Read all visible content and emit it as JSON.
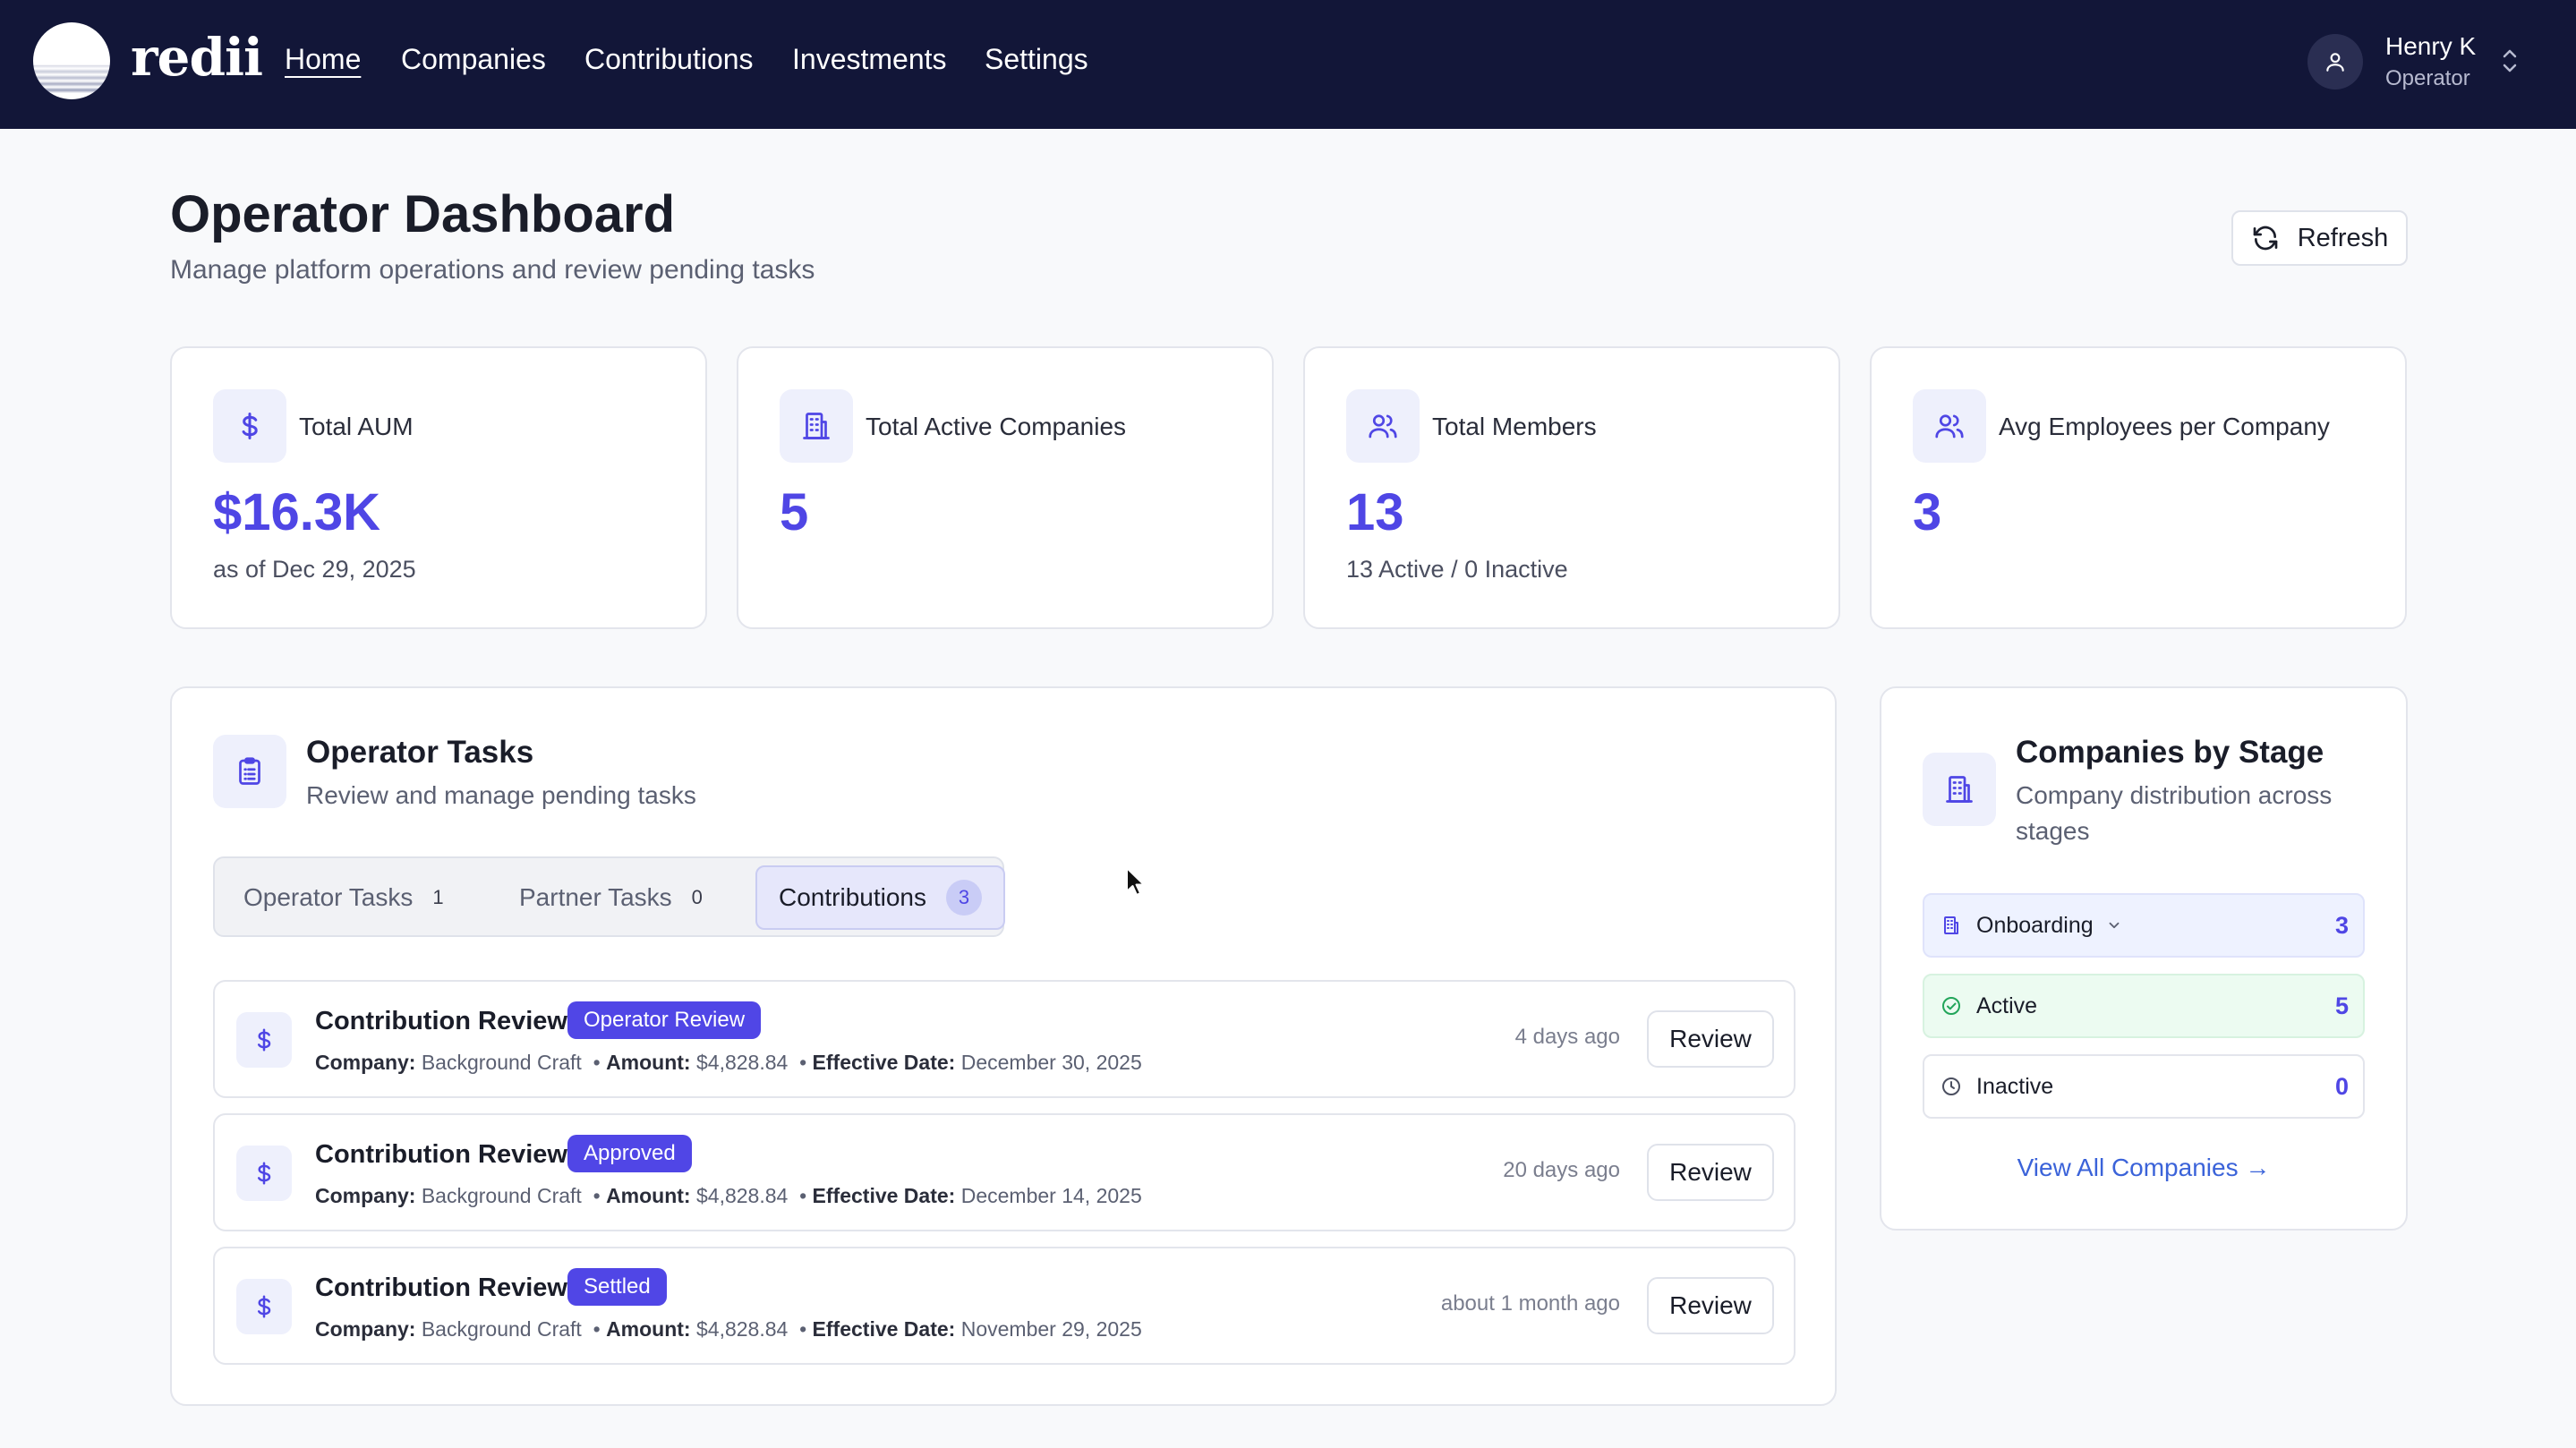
{
  "brand": {
    "name": "redii"
  },
  "nav": {
    "items": [
      {
        "label": "Home",
        "active": true
      },
      {
        "label": "Companies"
      },
      {
        "label": "Contributions"
      },
      {
        "label": "Investments"
      },
      {
        "label": "Settings"
      }
    ]
  },
  "user": {
    "name": "Henry K",
    "role": "Operator"
  },
  "header": {
    "title": "Operator Dashboard",
    "subtitle": "Manage platform operations and review pending tasks",
    "refresh_label": "Refresh"
  },
  "stats": [
    {
      "icon": "dollar-icon",
      "label": "Total AUM",
      "value": "$16.3K",
      "sub": "as of Dec 29, 2025"
    },
    {
      "icon": "building-icon",
      "label": "Total Active Companies",
      "value": "5",
      "sub": ""
    },
    {
      "icon": "users-icon",
      "label": "Total Members",
      "value": "13",
      "sub": "13 Active / 0 Inactive"
    },
    {
      "icon": "users-icon",
      "label": "Avg Employees per Company",
      "value": "3",
      "sub": ""
    }
  ],
  "tasks": {
    "title": "Operator Tasks",
    "subtitle": "Review and manage pending tasks",
    "tabs": [
      {
        "label": "Operator Tasks",
        "count": "1"
      },
      {
        "label": "Partner Tasks",
        "count": "0"
      },
      {
        "label": "Contributions",
        "count": "3",
        "active": true
      }
    ],
    "meta_labels": {
      "company": "Company:",
      "amount": "Amount:",
      "effective": "Effective Date:"
    },
    "review_label": "Review",
    "rows": [
      {
        "title": "Contribution Review",
        "badge": "Operator Review",
        "company": "Background Craft",
        "amount": "$4,828.84",
        "effective_date": "December 30, 2025",
        "time": "4 days ago"
      },
      {
        "title": "Contribution Review",
        "badge": "Approved",
        "company": "Background Craft",
        "amount": "$4,828.84",
        "effective_date": "December 14, 2025",
        "time": "20 days ago"
      },
      {
        "title": "Contribution Review",
        "badge": "Settled",
        "company": "Background Craft",
        "amount": "$4,828.84",
        "effective_date": "November 29, 2025",
        "time": "about 1 month ago"
      }
    ]
  },
  "stages": {
    "title": "Companies by Stage",
    "subtitle_line1": "Company distribution across",
    "subtitle_line2": "stages",
    "rows": [
      {
        "label": "Onboarding",
        "count": "3",
        "bg": "#eef2ff",
        "border": "#dfe3fb"
      },
      {
        "label": "Active",
        "count": "5",
        "bg": "#ecfbf1",
        "border": "#d7f2e0"
      },
      {
        "label": "Inactive",
        "count": "0",
        "bg": "#ffffff",
        "border": "#e3e5ec"
      }
    ],
    "view_all": "View All Companies →"
  },
  "colors": {
    "nav_bg": "#121638",
    "accent": "#4f46e5",
    "badge_bg": "#5046e6",
    "link": "#3b63d9"
  }
}
